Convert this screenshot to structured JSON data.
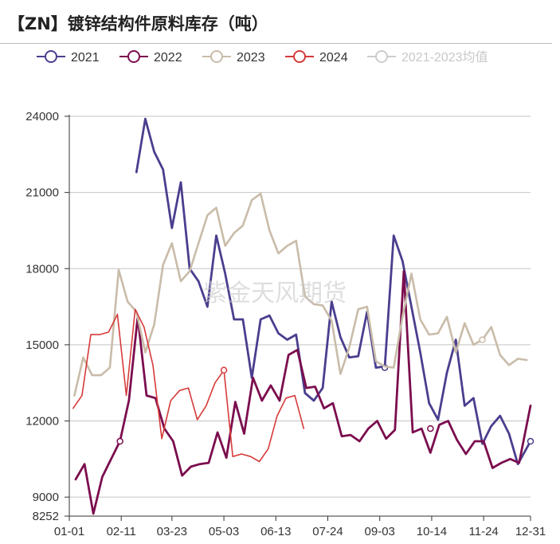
{
  "chart_data": {
    "type": "line",
    "title": "【ZN】镀锌结构件原料库存（吨）",
    "watermark": "紫金天风期货",
    "x_tick_labels": [
      "01-01",
      "02-11",
      "03-23",
      "05-03",
      "06-13",
      "07-24",
      "09-03",
      "10-14",
      "11-24",
      "12-31"
    ],
    "y_tick_labels": [
      "8252",
      "9000",
      "12000",
      "15000",
      "18000",
      "21000",
      "24000"
    ],
    "ylim": [
      8252,
      24000
    ],
    "grid": true,
    "legend_position": "top",
    "series": [
      {
        "name": "2021",
        "color": "#4a3e8e",
        "x": [
          "02-23",
          "03-02",
          "03-09",
          "03-16",
          "03-23",
          "03-30",
          "04-06",
          "04-13",
          "04-20",
          "04-27",
          "05-04",
          "05-11",
          "05-18",
          "05-25",
          "06-01",
          "06-08",
          "06-15",
          "06-22",
          "06-29",
          "07-06",
          "07-13",
          "07-20",
          "07-27",
          "08-03",
          "08-10",
          "08-17",
          "08-24",
          "08-31",
          "09-07",
          "09-14",
          "09-21",
          "09-28",
          "10-05",
          "10-12",
          "10-19",
          "10-26",
          "11-02",
          "11-09",
          "11-16",
          "11-23",
          "11-30",
          "12-07",
          "12-14",
          "12-21",
          "12-31"
        ],
        "y": [
          21800,
          23900,
          22600,
          21900,
          19600,
          21400,
          18000,
          17500,
          16500,
          19300,
          17800,
          16000,
          16000,
          13700,
          16000,
          16150,
          15450,
          15200,
          15400,
          13100,
          12800,
          13300,
          16700,
          15300,
          14500,
          14550,
          16300,
          14100,
          14150,
          19300,
          18300,
          16500,
          14700,
          12700,
          12050,
          13900,
          15200,
          12600,
          12900,
          11100,
          11800,
          12200,
          11500,
          10300,
          11200
        ],
        "markers": [
          {
            "x": "09-07",
            "y": 14100,
            "label": ""
          },
          {
            "x": "12-31",
            "y": 11200,
            "label": ""
          }
        ]
      },
      {
        "name": "2022",
        "color": "#7b0d4e",
        "x": [
          "01-06",
          "01-13",
          "01-20",
          "01-27",
          "02-03",
          "02-10",
          "02-17",
          "02-24",
          "03-03",
          "03-10",
          "03-17",
          "03-24",
          "03-31",
          "04-07",
          "04-14",
          "04-21",
          "04-28",
          "05-05",
          "05-12",
          "05-19",
          "05-26",
          "06-02",
          "06-09",
          "06-16",
          "06-23",
          "06-30",
          "07-07",
          "07-14",
          "07-21",
          "07-28",
          "08-04",
          "08-11",
          "08-18",
          "08-25",
          "09-01",
          "09-08",
          "09-15",
          "09-22",
          "09-29",
          "10-06",
          "10-13",
          "10-20",
          "10-27",
          "11-03",
          "11-10",
          "11-17",
          "11-24",
          "12-01",
          "12-08",
          "12-15",
          "12-22",
          "12-31"
        ],
        "y": [
          9700,
          10300,
          8350,
          9800,
          10500,
          11200,
          12800,
          16100,
          13000,
          12900,
          11700,
          11200,
          9850,
          10200,
          10300,
          10350,
          11550,
          10550,
          12750,
          11500,
          13700,
          12800,
          13400,
          12800,
          14600,
          14800,
          13300,
          13350,
          12500,
          12700,
          11400,
          11450,
          11200,
          11700,
          12000,
          11300,
          11650,
          17900,
          11550,
          11700,
          10750,
          11850,
          12000,
          11250,
          10700,
          11200,
          11200,
          10150,
          10350,
          10500,
          10350,
          12600
        ],
        "markers": [
          {
            "x": "02-10",
            "y": 11200,
            "label": ""
          },
          {
            "x": "10-13",
            "y": 11700,
            "label": ""
          }
        ]
      },
      {
        "name": "2023",
        "color": "#c9bca9",
        "x": [
          "01-05",
          "01-12",
          "01-19",
          "01-26",
          "02-02",
          "02-09",
          "02-16",
          "02-23",
          "03-02",
          "03-09",
          "03-16",
          "03-23",
          "03-30",
          "04-06",
          "04-13",
          "04-20",
          "04-27",
          "05-04",
          "05-11",
          "05-18",
          "05-25",
          "06-01",
          "06-08",
          "06-15",
          "06-22",
          "06-29",
          "07-06",
          "07-13",
          "07-20",
          "07-27",
          "08-03",
          "08-10",
          "08-17",
          "08-24",
          "08-31",
          "09-07",
          "09-14",
          "09-21",
          "09-28",
          "10-05",
          "10-12",
          "10-19",
          "10-26",
          "11-02",
          "11-09",
          "11-16",
          "11-23",
          "11-30",
          "12-07",
          "12-14",
          "12-21",
          "12-28"
        ],
        "y": [
          13000,
          14500,
          13800,
          13800,
          14100,
          17950,
          16700,
          16300,
          14700,
          15800,
          18150,
          19000,
          17500,
          17900,
          19000,
          20100,
          20400,
          18900,
          19400,
          19700,
          20700,
          20950,
          19500,
          18600,
          18900,
          19100,
          16900,
          16600,
          16550,
          15950,
          13850,
          14900,
          16400,
          16500,
          14350,
          14150,
          14100,
          16100,
          17800,
          16000,
          15400,
          15450,
          16100,
          14700,
          15850,
          15000,
          15200,
          15700,
          14600,
          14200,
          14450,
          14400
        ],
        "markers": [
          {
            "x": "11-23",
            "y": 15200,
            "label": ""
          }
        ]
      },
      {
        "name": "2024",
        "color": "#d63a3a",
        "x": [
          "01-04",
          "01-11",
          "01-18",
          "01-25",
          "02-01",
          "02-08",
          "02-15",
          "02-22",
          "03-01",
          "03-08",
          "03-15",
          "03-22",
          "03-29",
          "04-05",
          "04-12",
          "04-19",
          "04-26",
          "05-03",
          "05-10",
          "05-17",
          "05-24",
          "05-31",
          "06-07",
          "06-14",
          "06-21",
          "06-28",
          "07-05"
        ],
        "y": [
          12500,
          13000,
          15400,
          15400,
          15500,
          16200,
          13000,
          16400,
          15700,
          14200,
          11300,
          12800,
          13200,
          13300,
          12050,
          12600,
          13500,
          14000,
          10600,
          10700,
          10600,
          10400,
          10900,
          12200,
          12900,
          13000,
          11700
        ],
        "markers": [
          {
            "x": "05-03",
            "y": 14000,
            "label": ""
          }
        ]
      },
      {
        "name": "2021-2023均值",
        "color": "#cccccc",
        "x": [],
        "y": []
      }
    ]
  }
}
